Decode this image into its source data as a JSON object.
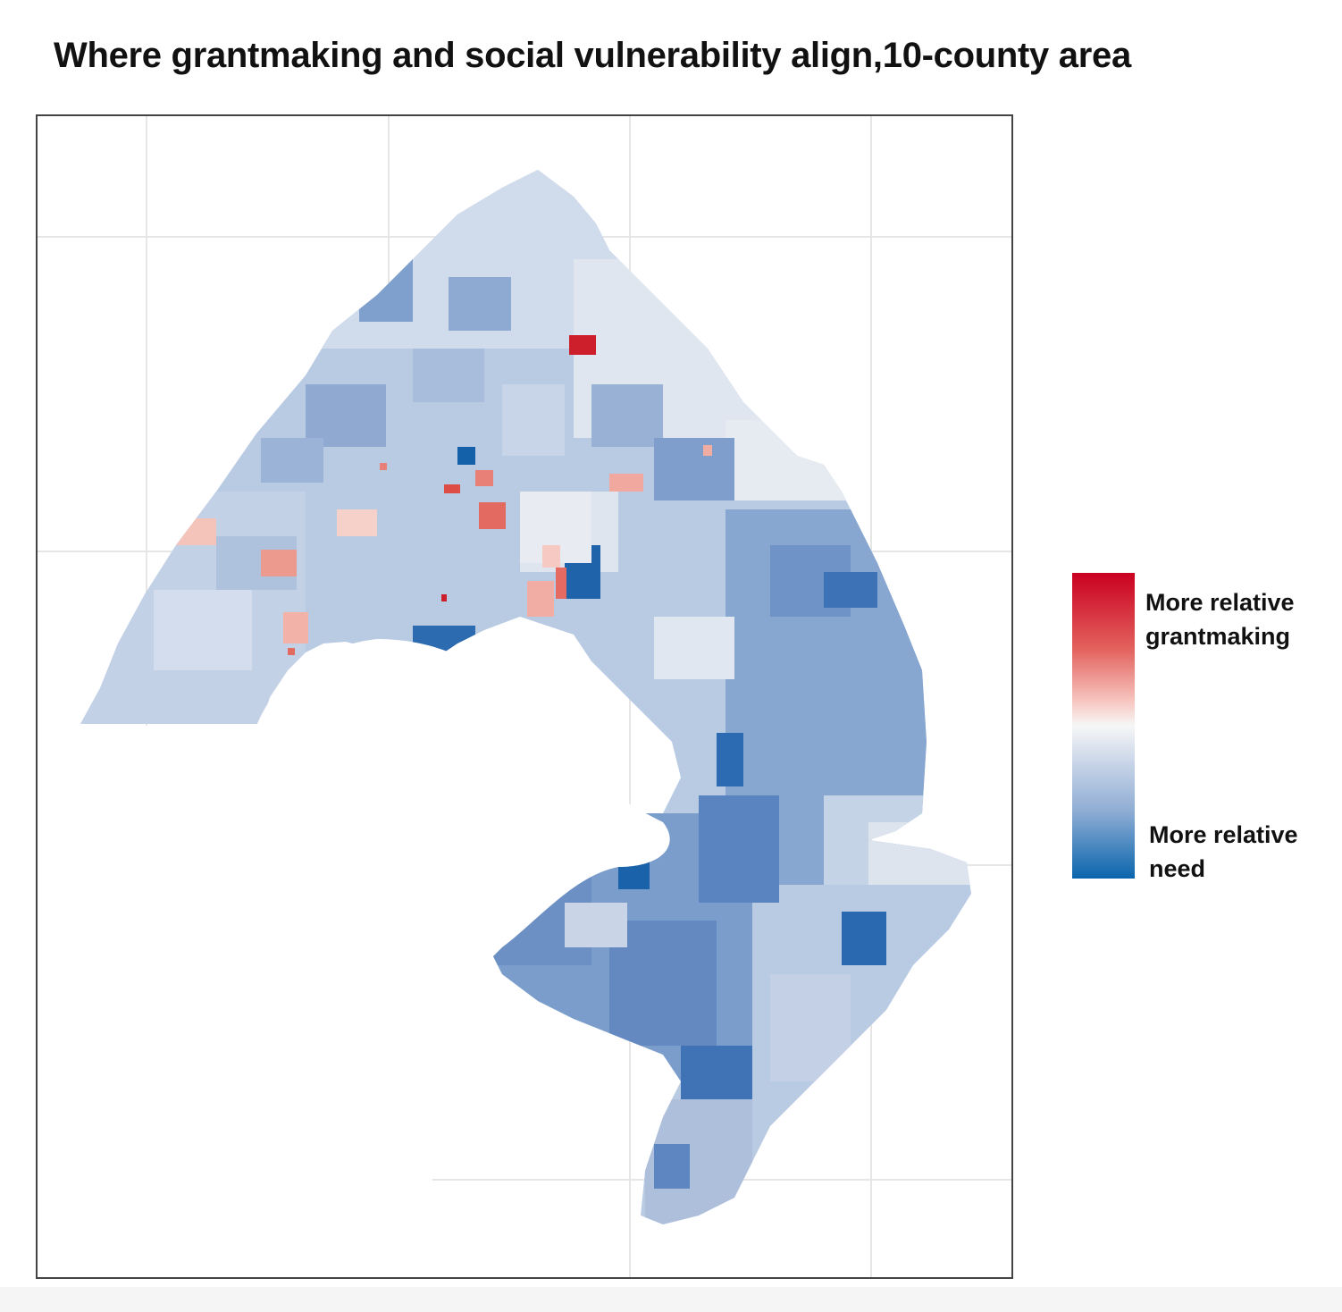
{
  "title": "Where grantmaking and social vulnerability align,10-county area",
  "legend": {
    "top_label": "More relative grantmaking",
    "bottom_label": "More relative need",
    "colors": {
      "high_grantmaking": "#ca0020",
      "neutral": "#f7f7f7",
      "high_need": "#0a65ad"
    }
  }
}
